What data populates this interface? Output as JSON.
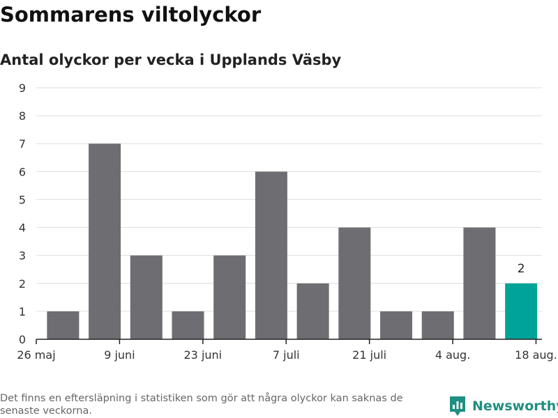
{
  "title": "Sommarens viltolyckor",
  "subtitle": "Antal olyckor per vecka i Upplands Väsby",
  "footnote": "Det finns en eftersläpning i statistiken som gör att några olyckor kan saknas de senaste veckorna.",
  "brand": {
    "name": "Newsworthy",
    "icon": "newsworthy-logo-icon"
  },
  "colors": {
    "bar": "#6e6d72",
    "highlight": "#00a397",
    "grid": "#dedede",
    "axis": "#222222",
    "brand": "#1f8f82"
  },
  "chart_data": {
    "type": "bar",
    "title": "Sommarens viltolyckor",
    "subtitle": "Antal olyckor per vecka i Upplands Väsby",
    "xlabel": "",
    "ylabel": "",
    "ylim": [
      0,
      9
    ],
    "yticks": [
      0,
      1,
      2,
      3,
      4,
      5,
      6,
      7,
      8,
      9
    ],
    "grid": true,
    "legend": "none",
    "week_starts": [
      "2019-05-27",
      "2019-06-03",
      "2019-06-10",
      "2019-06-17",
      "2019-06-24",
      "2019-07-01",
      "2019-07-08",
      "2019-07-15",
      "2019-07-22",
      "2019-07-29",
      "2019-08-05",
      "2019-08-12"
    ],
    "values": [
      1,
      7,
      3,
      1,
      3,
      6,
      2,
      4,
      1,
      1,
      4,
      2
    ],
    "highlight_index": 11,
    "highlight_label": "2",
    "xticks": [
      {
        "label": "26 maj",
        "date": "2019-05-26"
      },
      {
        "label": "9 juni",
        "date": "2019-06-09"
      },
      {
        "label": "23 juni",
        "date": "2019-06-23"
      },
      {
        "label": "7 juli",
        "date": "2019-07-07"
      },
      {
        "label": "21 juli",
        "date": "2019-07-21"
      },
      {
        "label": "4 aug.",
        "date": "2019-08-04"
      },
      {
        "label": "18 aug.",
        "date": "2019-08-18"
      }
    ],
    "xrange": [
      "2019-05-26",
      "2019-08-19"
    ]
  }
}
